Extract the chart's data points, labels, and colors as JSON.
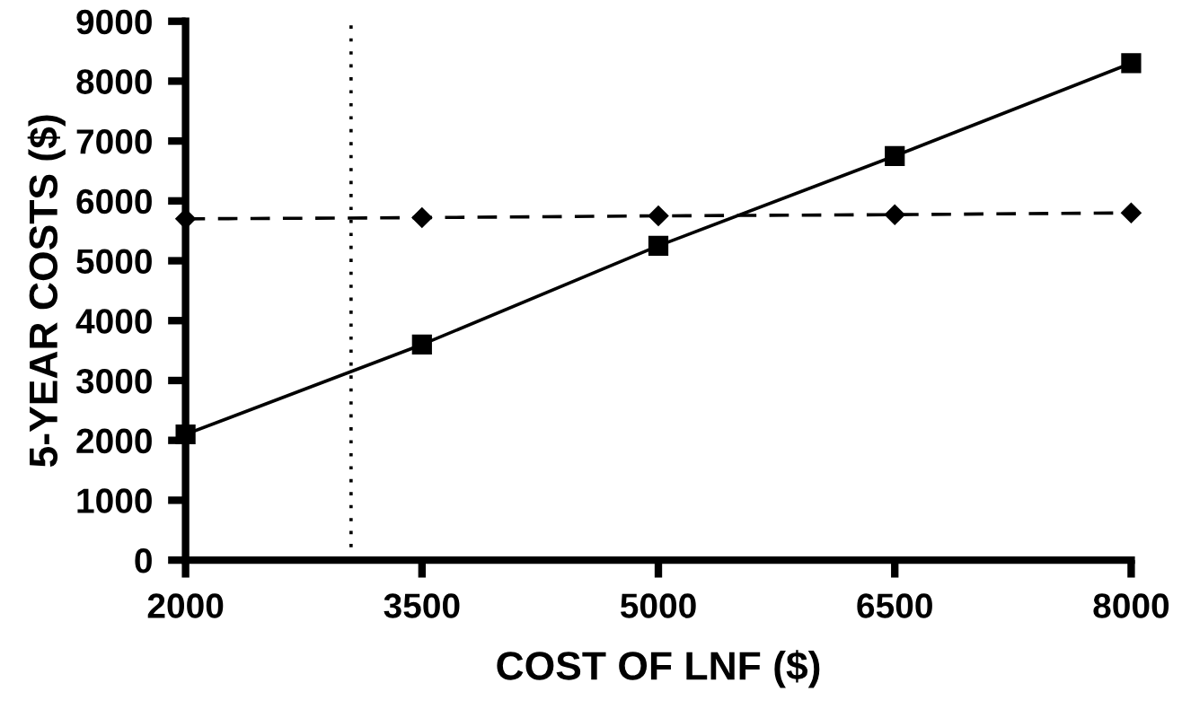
{
  "chart_data": {
    "type": "line",
    "xlabel": "COST OF LNF ($)",
    "ylabel": "5-YEAR COSTS ($)",
    "x": [
      2000,
      3500,
      5000,
      6500,
      8000
    ],
    "series": [
      {
        "color": "#000000",
        "values": [
          2100,
          3600,
          5250,
          6750,
          8300
        ],
        "marker": "square",
        "line_style": "solid"
      },
      {
        "color": "#000000",
        "values": [
          5700,
          5720,
          5750,
          5770,
          5800
        ],
        "marker": "diamond",
        "line_style": "dashed"
      }
    ],
    "xlim": [
      2000,
      8000
    ],
    "xticks": [
      2000,
      3500,
      5000,
      6500,
      8000
    ],
    "ylim": [
      0,
      9000
    ],
    "yticks": [
      0,
      1000,
      2000,
      3000,
      4000,
      5000,
      6000,
      7000,
      8000,
      9000
    ],
    "ref_lines": [
      {
        "axis": "x",
        "value": 3050,
        "line_style": "dotted",
        "color": "#000000"
      }
    ],
    "grid": false,
    "legend": false
  }
}
